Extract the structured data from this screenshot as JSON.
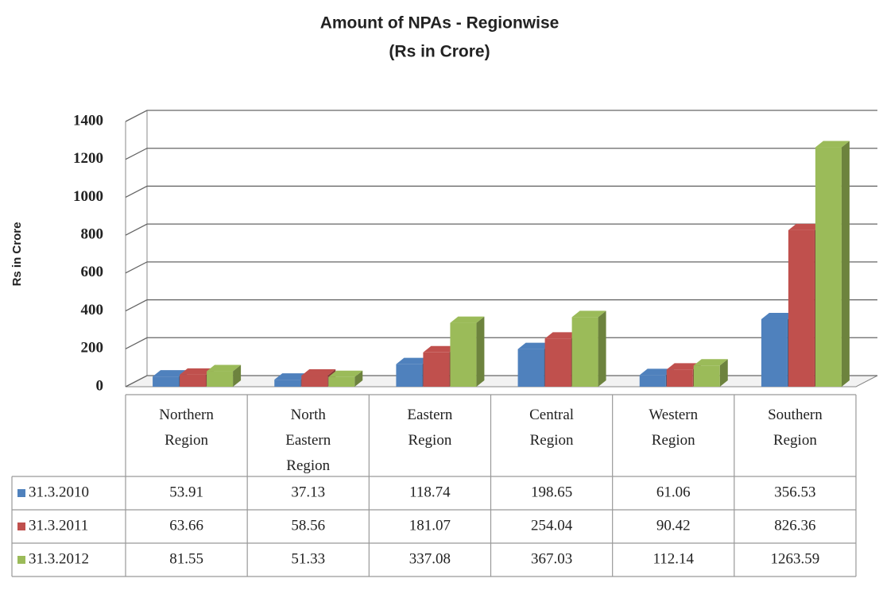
{
  "chart_data": {
    "type": "bar3d",
    "title": "Amount of NPAs - Regionwise",
    "subtitle": "(Rs in Crore)",
    "y_label": "Rs in Crore",
    "categories": [
      "Northern Region",
      "North Eastern Region",
      "Eastern Region",
      "Central Region",
      "Western Region",
      "Southern Region"
    ],
    "series": [
      {
        "name": "31.3.2010",
        "color": "#4f81bd",
        "values": [
          53.91,
          37.13,
          118.74,
          198.65,
          61.06,
          356.53
        ]
      },
      {
        "name": "31.3.2011",
        "color": "#c0504d",
        "values": [
          63.66,
          58.56,
          181.07,
          254.04,
          90.42,
          826.36
        ]
      },
      {
        "name": "31.3.2012",
        "color": "#9bbb59",
        "values": [
          81.55,
          51.33,
          337.08,
          367.03,
          112.14,
          1263.59
        ]
      }
    ],
    "ylim": [
      0,
      1400
    ],
    "yticks": [
      0,
      200,
      400,
      600,
      800,
      1000,
      1200,
      1400
    ],
    "grid": true
  }
}
